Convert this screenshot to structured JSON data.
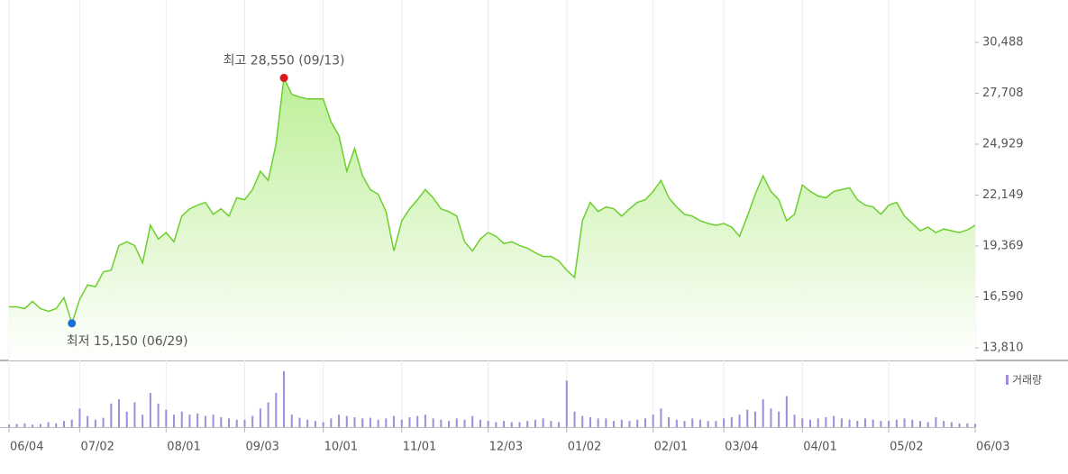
{
  "chart_data": {
    "type": "area",
    "categories": [
      "06/04",
      null,
      null,
      null,
      null,
      null,
      null,
      null,
      null,
      "07/02",
      null,
      null,
      null,
      null,
      null,
      null,
      null,
      null,
      null,
      null,
      "08/01",
      null,
      null,
      null,
      null,
      null,
      null,
      null,
      null,
      null,
      "09/03",
      null,
      null,
      null,
      null,
      null,
      null,
      null,
      null,
      null,
      "10/01",
      null,
      null,
      null,
      null,
      null,
      null,
      null,
      null,
      null,
      "11/01",
      null,
      null,
      null,
      null,
      null,
      null,
      null,
      null,
      null,
      null,
      "12/03",
      null,
      null,
      null,
      null,
      null,
      null,
      null,
      null,
      null,
      "01/02",
      null,
      null,
      null,
      null,
      null,
      null,
      null,
      null,
      null,
      null,
      "02/01",
      null,
      null,
      null,
      null,
      null,
      null,
      null,
      null,
      "03/04",
      null,
      null,
      null,
      null,
      null,
      null,
      null,
      null,
      null,
      "04/01",
      null,
      null,
      null,
      null,
      null,
      null,
      null,
      null,
      null,
      null,
      "05/02",
      null,
      null,
      null,
      null,
      null,
      null,
      null,
      null,
      null,
      null,
      "06/03"
    ],
    "series": [
      {
        "color": "#6ccf2e",
        "fill": "#bdef97",
        "values": [
          16050,
          16050,
          15950,
          16350,
          15950,
          15800,
          15950,
          16550,
          15150,
          16450,
          17250,
          17150,
          17950,
          18050,
          19400,
          19600,
          19400,
          18450,
          20500,
          19750,
          20100,
          19600,
          21000,
          21400,
          21600,
          21750,
          21100,
          21400,
          21000,
          22000,
          21900,
          22450,
          23450,
          22950,
          24950,
          28550,
          27650,
          27500,
          27400,
          27400,
          27400,
          26150,
          25400,
          23450,
          24700,
          23200,
          22450,
          22200,
          21250,
          19100,
          20750,
          21400,
          21900,
          22450,
          22000,
          21400,
          21250,
          21000,
          19600,
          19100,
          19750,
          20100,
          19900,
          19500,
          19600,
          19400,
          19250,
          19000,
          18800,
          18800,
          18550,
          18050,
          17650,
          20750,
          21750,
          21250,
          21500,
          21400,
          21000,
          21400,
          21750,
          21900,
          22350,
          22950,
          22000,
          21500,
          21100,
          21000,
          20750,
          20600,
          20500,
          20600,
          20400,
          19900,
          21000,
          22200,
          23200,
          22350,
          21900,
          20750,
          21100,
          22700,
          22350,
          22100,
          22000,
          22350,
          22450,
          22550,
          21900,
          21600,
          21500,
          21100,
          21600,
          21750,
          21000,
          20600,
          20200,
          20400,
          20100,
          20300,
          20200,
          20100,
          20250,
          20500
        ]
      },
      {
        "name": "거래량",
        "type": "bar",
        "axis": "y2",
        "color": "#a08cd8",
        "values": [
          4,
          5,
          6,
          4,
          5,
          8,
          6,
          10,
          12,
          30,
          18,
          12,
          15,
          38,
          45,
          25,
          40,
          20,
          55,
          38,
          28,
          20,
          25,
          20,
          22,
          18,
          20,
          16,
          14,
          12,
          12,
          18,
          30,
          40,
          55,
          90,
          20,
          15,
          12,
          10,
          8,
          14,
          20,
          18,
          16,
          14,
          15,
          12,
          14,
          18,
          12,
          16,
          18,
          20,
          14,
          12,
          10,
          14,
          12,
          18,
          12,
          10,
          8,
          10,
          8,
          8,
          10,
          12,
          14,
          10,
          8,
          75,
          25,
          18,
          16,
          14,
          14,
          10,
          12,
          10,
          12,
          14,
          20,
          30,
          16,
          12,
          10,
          14,
          12,
          10,
          10,
          14,
          16,
          20,
          28,
          25,
          45,
          30,
          25,
          50,
          20,
          14,
          12,
          14,
          16,
          18,
          14,
          12,
          10,
          14,
          12,
          10,
          10,
          12,
          14,
          12,
          10,
          8,
          16,
          10,
          8,
          6,
          6,
          5
        ]
      }
    ],
    "ylim": [
      13121,
      30832
    ],
    "yticks": [
      {
        "value": 30488,
        "label": "30,488"
      },
      {
        "value": 27708,
        "label": "27,708"
      },
      {
        "value": 24929,
        "label": "24,929"
      },
      {
        "value": 22149,
        "label": "22,149"
      },
      {
        "value": 19369,
        "label": "19,369"
      },
      {
        "value": 16590,
        "label": "16,590"
      },
      {
        "value": 13810,
        "label": "13,810"
      }
    ],
    "y2lim": [
      0,
      100
    ],
    "grid": true,
    "annotations": [
      {
        "text": "최고 28,550 (09/13)",
        "color": "#e0161e",
        "marker": "max"
      },
      {
        "text": "최저 15,150 (06/29)",
        "color": "#1a6fd6",
        "marker": "min"
      }
    ]
  }
}
